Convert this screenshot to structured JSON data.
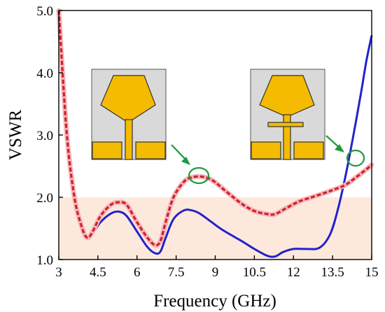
{
  "chart_data": {
    "type": "line",
    "title": "",
    "xlabel": "Frequency (GHz)",
    "ylabel": "VSWR",
    "xlim": [
      3,
      15
    ],
    "ylim": [
      1.0,
      5.0
    ],
    "x_ticks": [
      3,
      4.5,
      6,
      7.5,
      9,
      10.5,
      12,
      13.5,
      15
    ],
    "x_tick_labels": [
      "3",
      "4.5",
      "6",
      "7.5",
      "9",
      "10.5",
      "12",
      "13.5",
      "15"
    ],
    "y_ticks": [
      1.0,
      2.0,
      3.0,
      4.0,
      5.0
    ],
    "y_tick_labels": [
      "1.0",
      "2.0",
      "3.0",
      "4.0",
      "5.0"
    ],
    "grid": false,
    "shaded_band": {
      "y_from": 1.0,
      "y_to": 2.0,
      "color": "#fde9dc"
    },
    "series": [
      {
        "color": "#2222cc",
        "style": "solid",
        "x": [
          3.0,
          3.3,
          3.6,
          3.9,
          4.1,
          4.3,
          4.6,
          5.0,
          5.3,
          5.6,
          6.0,
          6.4,
          6.7,
          6.9,
          7.1,
          7.4,
          7.8,
          8.1,
          8.4,
          8.8,
          9.3,
          10.0,
          10.5,
          11.0,
          11.3,
          11.6,
          12.0,
          12.5,
          13.0,
          13.4,
          13.7,
          14.0,
          14.3,
          14.6,
          14.8,
          15.0
        ],
        "y": [
          5.0,
          3.1,
          2.05,
          1.48,
          1.34,
          1.42,
          1.6,
          1.74,
          1.77,
          1.7,
          1.45,
          1.2,
          1.1,
          1.13,
          1.35,
          1.65,
          1.79,
          1.79,
          1.74,
          1.62,
          1.47,
          1.3,
          1.17,
          1.06,
          1.05,
          1.12,
          1.17,
          1.17,
          1.19,
          1.4,
          1.8,
          2.35,
          3.0,
          3.7,
          4.2,
          4.6
        ]
      },
      {
        "color": "#d42020",
        "style": "dashed",
        "x": [
          3.0,
          3.3,
          3.6,
          3.9,
          4.1,
          4.3,
          4.6,
          5.0,
          5.3,
          5.6,
          6.0,
          6.4,
          6.7,
          6.9,
          7.1,
          7.4,
          7.8,
          8.1,
          8.5,
          8.9,
          9.4,
          10.0,
          10.5,
          11.0,
          11.3,
          11.7,
          12.2,
          12.7,
          13.2,
          13.6,
          14.0,
          14.4,
          14.8,
          15.0
        ],
        "y": [
          5.0,
          3.05,
          2.0,
          1.5,
          1.35,
          1.45,
          1.7,
          1.88,
          1.92,
          1.88,
          1.6,
          1.35,
          1.23,
          1.3,
          1.6,
          2.0,
          2.25,
          2.32,
          2.33,
          2.27,
          2.1,
          1.9,
          1.78,
          1.73,
          1.73,
          1.82,
          1.93,
          2.0,
          2.07,
          2.13,
          2.2,
          2.32,
          2.45,
          2.52
        ]
      }
    ]
  },
  "colors": {
    "axis": "#000000",
    "band": "#fde9dc",
    "substrate": "#d9d9d9",
    "copper": "#f5bb00",
    "arrow": "#1f9a3a",
    "circle": "#1f9a3a"
  }
}
